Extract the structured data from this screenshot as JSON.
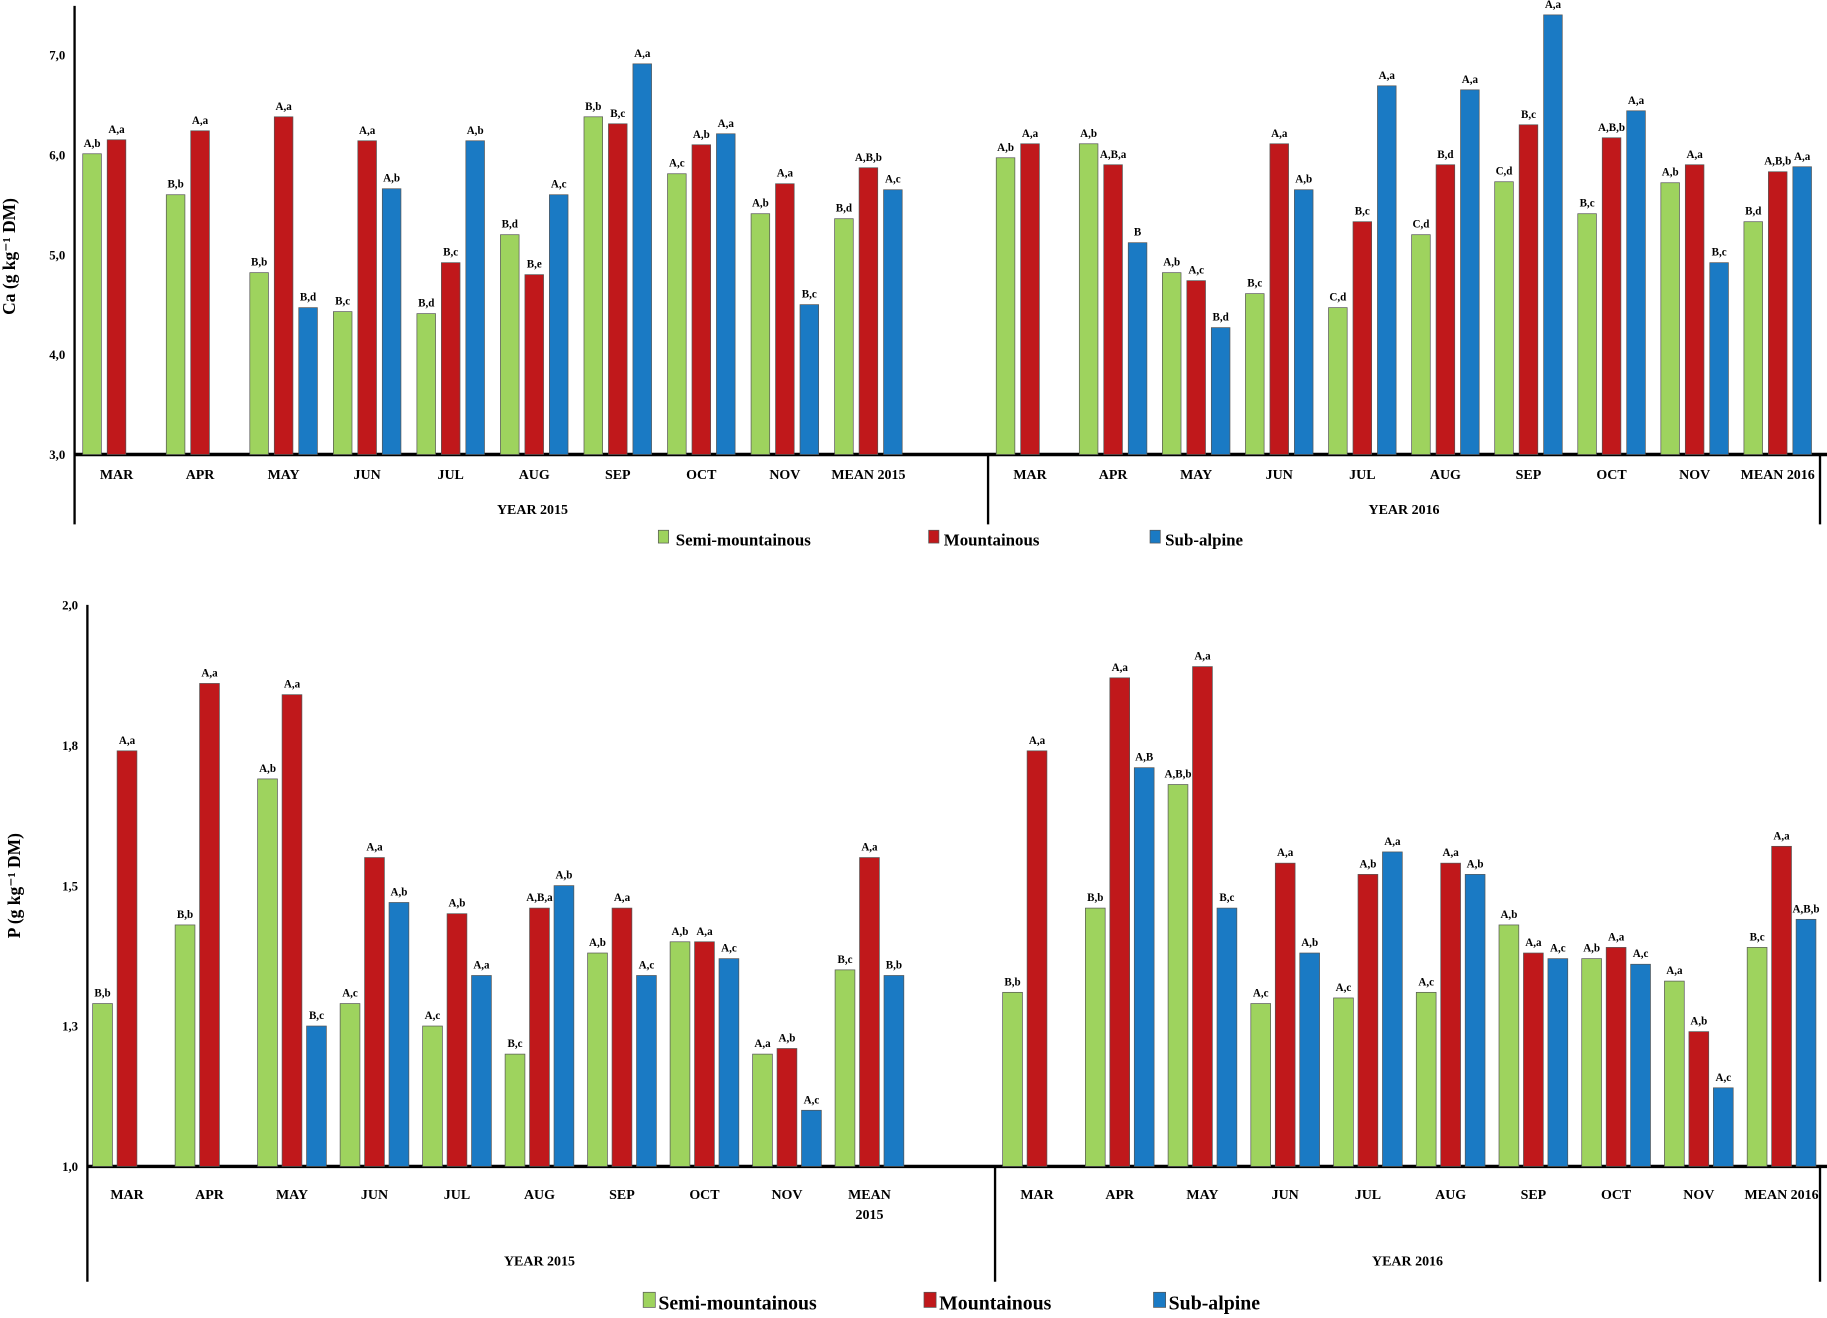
{
  "colors": {
    "Semi-mountainous": "#9ed35e",
    "Mountainous": "#c0181b",
    "Sub-alpine": "#1a7ac4"
  },
  "legend": [
    "Semi-mountainous",
    "Mountainous",
    "Sub-alpine"
  ],
  "chart_data": [
    {
      "type": "bar",
      "ylabel": "Ca  (g kg⁻¹ DM)",
      "ylim": [
        3,
        7.5
      ],
      "yticks": [
        3,
        4,
        5,
        6,
        7
      ],
      "ytick_labels": [
        "3,0",
        "4,0",
        "5,0",
        "6,0",
        "7,0"
      ],
      "grid": false,
      "legend_position": "bottom",
      "panels": [
        {
          "year_label": "YEAR 2015",
          "categories": [
            "MAR",
            "APR",
            "MAY",
            "JUN",
            "JUL",
            "AUG",
            "SEP",
            "OCT",
            "NOV",
            "MEAN  2015"
          ],
          "series": [
            {
              "name": "Semi-mountainous",
              "values": [
                6.01,
                5.6,
                4.82,
                4.43,
                4.41,
                5.2,
                6.38,
                5.81,
                5.41,
                5.36
              ],
              "labels": [
                "A,b",
                "B,b",
                "B,b",
                "B,c",
                "B,d",
                "B,d",
                "B,b",
                "A,c",
                "A,b",
                "B,d"
              ]
            },
            {
              "name": "Mountainous",
              "values": [
                6.15,
                6.24,
                6.38,
                6.14,
                4.92,
                4.8,
                6.31,
                6.1,
                5.71,
                5.87
              ],
              "labels": [
                "A,a",
                "A,a",
                "A,a",
                "A,a",
                "B,c",
                "B,e",
                "B,c",
                "A,b",
                "A,a",
                "A,B,b"
              ]
            },
            {
              "name": "Sub-alpine",
              "values": [
                null,
                null,
                4.47,
                5.66,
                6.14,
                5.6,
                6.91,
                6.21,
                4.5,
                5.65
              ],
              "labels": [
                null,
                null,
                "B,d",
                "A,b",
                "A,b",
                "A,c",
                "A,a",
                "A,a",
                "B,c",
                "A,c"
              ]
            }
          ]
        },
        {
          "year_label": "YEAR 2016",
          "categories": [
            "MAR",
            "APR",
            "MAY",
            "JUN",
            "JUL",
            "AUG",
            "SEP",
            "OCT",
            "NOV",
            "MEAN  2016"
          ],
          "series": [
            {
              "name": "Semi-mountainous",
              "values": [
                5.97,
                6.11,
                4.82,
                4.61,
                4.47,
                5.2,
                5.73,
                5.41,
                5.72,
                5.33
              ],
              "labels": [
                "A,b",
                "A,b",
                "A,b",
                "B,c",
                "C,d",
                "C,d",
                "C,d",
                "B,c",
                "A,b",
                "B,d"
              ]
            },
            {
              "name": "Mountainous",
              "values": [
                6.11,
                5.9,
                4.74,
                6.11,
                5.33,
                5.9,
                6.3,
                6.17,
                5.9,
                5.83
              ],
              "labels": [
                "A,a",
                "A,B,a",
                "A,c",
                "A,a",
                "B,c",
                "B,d",
                "B,c",
                "A,B,b",
                "A,a",
                "A,B,b"
              ]
            },
            {
              "name": "Sub-alpine",
              "values": [
                null,
                5.12,
                4.27,
                5.65,
                6.69,
                6.65,
                7.4,
                6.44,
                4.92,
                5.88
              ],
              "labels": [
                null,
                "B",
                "B,d",
                "A,b",
                "A,a",
                "A,a",
                "A,a",
                "A,a",
                "B,c",
                "A,a"
              ]
            }
          ]
        }
      ]
    },
    {
      "type": "bar",
      "ylabel": "P  (g kg⁻¹ DM)",
      "ylim": [
        1,
        2
      ],
      "yticks": [
        1,
        1.25,
        1.5,
        1.75,
        2
      ],
      "ytick_labels": [
        "1,0",
        "1,3",
        "1,5",
        "1,8",
        "2,0"
      ],
      "grid": false,
      "legend_position": "bottom",
      "panels": [
        {
          "year_label": "YEAR 2015",
          "categories": [
            "MAR",
            "APR",
            "MAY",
            "JUN",
            "JUL",
            "AUG",
            "SEP",
            "OCT",
            "NOV",
            "MEAN 2015"
          ],
          "series": [
            {
              "name": "Semi-mountainous",
              "values": [
                1.29,
                1.43,
                1.69,
                1.29,
                1.25,
                1.2,
                1.38,
                1.4,
                1.2,
                1.35
              ],
              "labels": [
                "B,b",
                "B,b",
                "A,b",
                "A,c",
                "A,c",
                "B,c",
                "A,b",
                "A,b",
                "A,a",
                "B,c"
              ]
            },
            {
              "name": "Mountainous",
              "values": [
                1.74,
                1.86,
                1.84,
                1.55,
                1.45,
                1.46,
                1.46,
                1.4,
                1.21,
                1.55
              ],
              "labels": [
                "A,a",
                "A,a",
                "A,a",
                "A,a",
                "A,b",
                "A,B,a",
                "A,a",
                "A,a",
                "A,b",
                "A,a"
              ]
            },
            {
              "name": "Sub-alpine",
              "values": [
                null,
                null,
                1.25,
                1.47,
                1.34,
                1.5,
                1.34,
                1.37,
                1.1,
                1.34
              ],
              "labels": [
                null,
                null,
                "B,c",
                "A,b",
                "A,a",
                "A,b",
                "A,c",
                "A,c",
                "A,c",
                "B,b"
              ]
            }
          ]
        },
        {
          "year_label": "YEAR 2016",
          "categories": [
            "MAR",
            "APR",
            "MAY",
            "JUN",
            "JUL",
            "AUG",
            "SEP",
            "OCT",
            "NOV",
            "MEAN  2016"
          ],
          "series": [
            {
              "name": "Semi-mountainous",
              "values": [
                1.31,
                1.46,
                1.68,
                1.29,
                1.3,
                1.31,
                1.43,
                1.37,
                1.33,
                1.39
              ],
              "labels": [
                "B,b",
                "B,b",
                "A,B,b",
                "A,c",
                "A,c",
                "A,c",
                "A,b",
                "A,b",
                "A,a",
                "B,c"
              ]
            },
            {
              "name": "Mountainous",
              "values": [
                1.74,
                1.87,
                1.89,
                1.54,
                1.52,
                1.54,
                1.38,
                1.39,
                1.24,
                1.57
              ],
              "labels": [
                "A,a",
                "A,a",
                "A,a",
                "A,a",
                "A,b",
                "A,a",
                "A,a",
                "A,a",
                "A,b",
                "A,a"
              ]
            },
            {
              "name": "Sub-alpine",
              "values": [
                null,
                1.71,
                1.46,
                1.38,
                1.56,
                1.52,
                1.37,
                1.36,
                1.14,
                1.44
              ],
              "labels": [
                null,
                "A,B",
                "B,c",
                "A,b",
                "A,a",
                "A,b",
                "A,c",
                "A,c",
                "A,c",
                "A,B,b"
              ]
            }
          ]
        }
      ]
    }
  ]
}
